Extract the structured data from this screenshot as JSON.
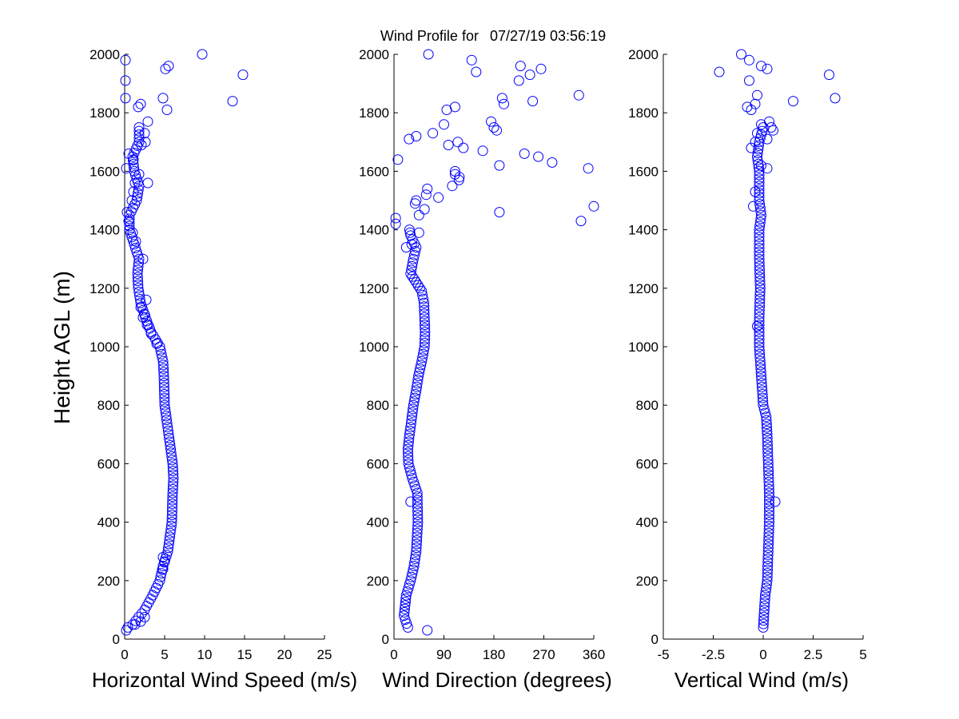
{
  "title_prefix": "Wind Profile for",
  "title_timestamp": "07/27/19 03:56:19",
  "colors": {
    "marker": "#0000ff",
    "axis": "#000000",
    "background": "#ffffff"
  },
  "chart_data": [
    {
      "type": "scatter",
      "id": "speed",
      "xlabel": "Horizontal Wind Speed (m/s)",
      "ylabel": "Height AGL (m)",
      "xlim": [
        0,
        25
      ],
      "ylim": [
        0,
        2000
      ],
      "xticks": [
        0,
        5,
        10,
        15,
        20,
        25
      ],
      "xtick_labels": [
        "0",
        "5",
        "10",
        "15",
        "20",
        "25"
      ],
      "yticks": [
        0,
        200,
        400,
        600,
        800,
        1000,
        1200,
        1400,
        1600,
        1800,
        2000
      ],
      "ytick_labels": [
        "0",
        "200",
        "400",
        "600",
        "800",
        "1000",
        "1200",
        "1400",
        "1600",
        "1800",
        "2000"
      ],
      "grid": false,
      "profile": [
        [
          0.4,
          40
        ],
        [
          1.0,
          50
        ],
        [
          2.5,
          100
        ],
        [
          3.5,
          150
        ],
        [
          4.4,
          200
        ],
        [
          4.8,
          250
        ],
        [
          5.4,
          300
        ],
        [
          5.9,
          400
        ],
        [
          6.0,
          500
        ],
        [
          6.1,
          550
        ],
        [
          6.0,
          600
        ],
        [
          5.5,
          700
        ],
        [
          5.0,
          800
        ],
        [
          4.9,
          900
        ],
        [
          4.8,
          950
        ],
        [
          4.4,
          1000
        ],
        [
          3.3,
          1050
        ],
        [
          2.6,
          1100
        ],
        [
          2.0,
          1150
        ],
        [
          1.7,
          1200
        ],
        [
          1.6,
          1250
        ],
        [
          1.8,
          1300
        ],
        [
          1.2,
          1350
        ],
        [
          0.6,
          1400
        ],
        [
          0.6,
          1450
        ],
        [
          1.5,
          1500
        ],
        [
          1.8,
          1550
        ],
        [
          1.2,
          1600
        ],
        [
          1.0,
          1650
        ],
        [
          1.8,
          1700
        ],
        [
          1.8,
          1750
        ]
      ],
      "extra_points": [
        [
          0.2,
          30
        ],
        [
          1.3,
          50
        ],
        [
          2.0,
          60
        ],
        [
          2.5,
          75
        ],
        [
          4.8,
          240
        ],
        [
          5.0,
          265
        ],
        [
          4.8,
          280
        ],
        [
          4.0,
          1010
        ],
        [
          3.3,
          1045
        ],
        [
          2.3,
          1100
        ],
        [
          2.5,
          1110
        ],
        [
          2.0,
          1135
        ],
        [
          2.7,
          1160
        ],
        [
          2.8,
          1075
        ],
        [
          2.3,
          1300
        ],
        [
          2.9,
          1560
        ],
        [
          2.1,
          1690
        ],
        [
          2.6,
          1700
        ],
        [
          2.5,
          1730
        ],
        [
          2.9,
          1770
        ],
        [
          1.7,
          1820
        ],
        [
          2.0,
          1830
        ],
        [
          0.1,
          1850
        ],
        [
          0.1,
          1910
        ],
        [
          0.1,
          1980
        ],
        [
          4.8,
          1850
        ],
        [
          5.3,
          1810
        ],
        [
          5.1,
          1950
        ],
        [
          5.5,
          1960
        ],
        [
          9.7,
          2000
        ],
        [
          14.8,
          1930
        ],
        [
          13.5,
          1840
        ],
        [
          1.3,
          1560
        ],
        [
          1.8,
          1590
        ],
        [
          0.2,
          1610
        ],
        [
          0.5,
          1660
        ],
        [
          1.1,
          1640
        ],
        [
          1.1,
          1530
        ],
        [
          0.9,
          1500
        ],
        [
          0.3,
          1460
        ],
        [
          0.5,
          1430
        ],
        [
          1.0,
          1390
        ],
        [
          1.4,
          1360
        ]
      ]
    },
    {
      "type": "scatter",
      "id": "direction",
      "xlabel": "Wind Direction (degrees)",
      "xlim": [
        0,
        360
      ],
      "ylim": [
        0,
        2000
      ],
      "xticks": [
        0,
        90,
        180,
        270,
        360
      ],
      "xtick_labels": [
        "0",
        "90",
        "180",
        "270",
        "360"
      ],
      "yticks": [
        0,
        200,
        400,
        600,
        800,
        1000,
        1200,
        1400,
        1600,
        1800,
        2000
      ],
      "ytick_labels": [
        "0",
        "200",
        "400",
        "600",
        "800",
        "1000",
        "1200",
        "1400",
        "1600",
        "1800",
        "2000"
      ],
      "grid": false,
      "profile": [
        [
          25,
          40
        ],
        [
          18,
          80
        ],
        [
          22,
          150
        ],
        [
          30,
          200
        ],
        [
          36,
          250
        ],
        [
          40,
          300
        ],
        [
          43,
          400
        ],
        [
          42,
          500
        ],
        [
          33,
          550
        ],
        [
          26,
          600
        ],
        [
          25,
          650
        ],
        [
          28,
          700
        ],
        [
          35,
          800
        ],
        [
          40,
          850
        ],
        [
          44,
          900
        ],
        [
          50,
          950
        ],
        [
          55,
          1000
        ],
        [
          56,
          1050
        ],
        [
          55,
          1100
        ],
        [
          54,
          1150
        ],
        [
          50,
          1190
        ],
        [
          40,
          1220
        ],
        [
          30,
          1250
        ],
        [
          35,
          1300
        ],
        [
          40,
          1340
        ],
        [
          30,
          1380
        ],
        [
          28,
          1400
        ]
      ],
      "extra_points": [
        [
          60,
          30
        ],
        [
          30,
          470
        ],
        [
          3,
          1420
        ],
        [
          3,
          1440
        ],
        [
          7,
          1640
        ],
        [
          22,
          1340
        ],
        [
          32,
          1350
        ],
        [
          45,
          1390
        ],
        [
          40,
          1500
        ],
        [
          38,
          1490
        ],
        [
          45,
          1450
        ],
        [
          55,
          1470
        ],
        [
          60,
          1540
        ],
        [
          58,
          1520
        ],
        [
          80,
          1510
        ],
        [
          105,
          1550
        ],
        [
          110,
          1600
        ],
        [
          110,
          1590
        ],
        [
          118,
          1580
        ],
        [
          117,
          1570
        ],
        [
          115,
          1700
        ],
        [
          125,
          1680
        ],
        [
          98,
          1690
        ],
        [
          90,
          1760
        ],
        [
          95,
          1810
        ],
        [
          110,
          1820
        ],
        [
          40,
          1720
        ],
        [
          27,
          1710
        ],
        [
          70,
          1730
        ],
        [
          160,
          1670
        ],
        [
          175,
          1770
        ],
        [
          180,
          1750
        ],
        [
          185,
          1740
        ],
        [
          190,
          1620
        ],
        [
          190,
          1460
        ],
        [
          140,
          1980
        ],
        [
          148,
          1940
        ],
        [
          195,
          1850
        ],
        [
          198,
          1830
        ],
        [
          225,
          1910
        ],
        [
          228,
          1960
        ],
        [
          245,
          1930
        ],
        [
          250,
          1840
        ],
        [
          265,
          1950
        ],
        [
          235,
          1660
        ],
        [
          260,
          1650
        ],
        [
          285,
          1630
        ],
        [
          333,
          1860
        ],
        [
          350,
          1610
        ],
        [
          360,
          1480
        ],
        [
          337,
          1430
        ],
        [
          62,
          2000
        ]
      ]
    },
    {
      "type": "scatter",
      "id": "vertical",
      "xlabel": "Vertical Wind (m/s)",
      "xlim": [
        -5,
        5
      ],
      "ylim": [
        0,
        2000
      ],
      "xticks": [
        -5,
        -2.5,
        0,
        2.5,
        5
      ],
      "xtick_labels": [
        "-5",
        "-2.5",
        "0",
        "2.5",
        "5"
      ],
      "yticks": [
        0,
        200,
        400,
        600,
        800,
        1000,
        1200,
        1400,
        1600,
        1800,
        2000
      ],
      "ytick_labels": [
        "0",
        "200",
        "400",
        "600",
        "800",
        "1000",
        "1200",
        "1400",
        "1600",
        "1800",
        "2000"
      ],
      "grid": false,
      "profile": [
        [
          0.0,
          40
        ],
        [
          0.05,
          100
        ],
        [
          0.1,
          150
        ],
        [
          0.2,
          200
        ],
        [
          0.25,
          300
        ],
        [
          0.3,
          400
        ],
        [
          0.3,
          500
        ],
        [
          0.25,
          600
        ],
        [
          0.2,
          700
        ],
        [
          0.15,
          760
        ],
        [
          0.0,
          800
        ],
        [
          -0.1,
          900
        ],
        [
          -0.2,
          1000
        ],
        [
          -0.2,
          1100
        ],
        [
          -0.15,
          1200
        ],
        [
          -0.2,
          1300
        ],
        [
          -0.2,
          1400
        ],
        [
          -0.1,
          1450
        ],
        [
          -0.2,
          1500
        ],
        [
          -0.2,
          1600
        ],
        [
          -0.3,
          1650
        ],
        [
          -0.2,
          1700
        ],
        [
          0.0,
          1750
        ]
      ],
      "extra_points": [
        [
          0.6,
          470
        ],
        [
          -0.3,
          1070
        ],
        [
          -0.4,
          1530
        ],
        [
          -0.5,
          1480
        ],
        [
          -0.6,
          1680
        ],
        [
          -0.4,
          1700
        ],
        [
          -0.3,
          1730
        ],
        [
          0.2,
          1710
        ],
        [
          0.4,
          1750
        ],
        [
          0.5,
          1740
        ],
        [
          0.3,
          1770
        ],
        [
          -0.1,
          1760
        ],
        [
          -0.8,
          1820
        ],
        [
          -0.6,
          1810
        ],
        [
          -0.4,
          1830
        ],
        [
          -0.3,
          1860
        ],
        [
          1.5,
          1840
        ],
        [
          3.3,
          1930
        ],
        [
          3.6,
          1850
        ],
        [
          0.2,
          1950
        ],
        [
          -0.1,
          1960
        ],
        [
          -0.7,
          1980
        ],
        [
          -1.1,
          2000
        ],
        [
          -2.2,
          1940
        ],
        [
          -0.7,
          1910
        ],
        [
          -0.1,
          1620
        ],
        [
          0.2,
          1610
        ]
      ]
    }
  ]
}
